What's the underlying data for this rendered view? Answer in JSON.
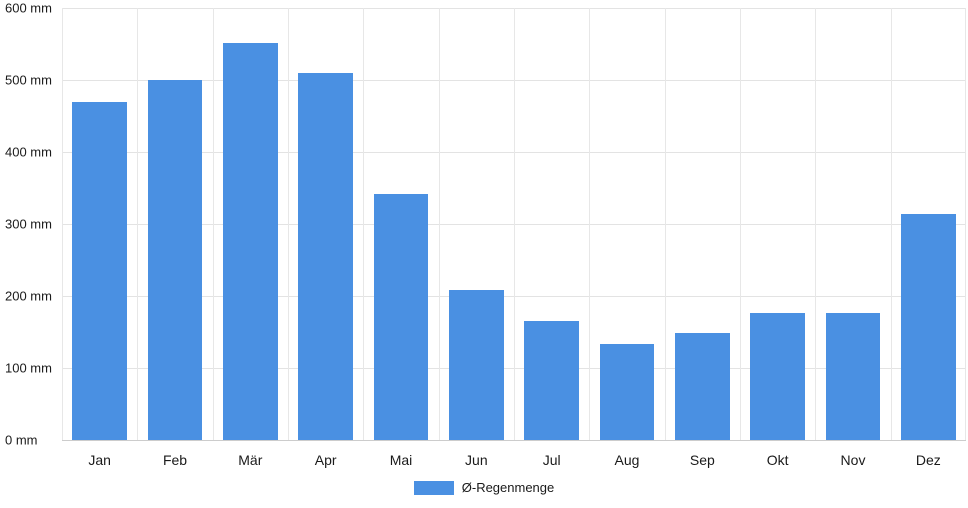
{
  "chart_data": {
    "type": "bar",
    "title": "",
    "categories": [
      "Jan",
      "Feb",
      "Mär",
      "Apr",
      "Mai",
      "Jun",
      "Jul",
      "Aug",
      "Sep",
      "Okt",
      "Nov",
      "Dez"
    ],
    "series": [
      {
        "name": "Ø-Regenmenge",
        "values": [
          470,
          500,
          552,
          510,
          342,
          208,
          165,
          134,
          149,
          176,
          177,
          314
        ]
      }
    ],
    "unit": "mm",
    "ylim": [
      0,
      600
    ],
    "ytick_step": 100,
    "yticklabels": [
      "0 mm",
      "100 mm",
      "200 mm",
      "300 mm",
      "400 mm",
      "500 mm",
      "600 mm"
    ],
    "grid": true,
    "legend_position": "bottom",
    "colors": {
      "bar": "#4a90e2",
      "grid": "#e3e3e3",
      "text": "#1a1a1a"
    }
  }
}
